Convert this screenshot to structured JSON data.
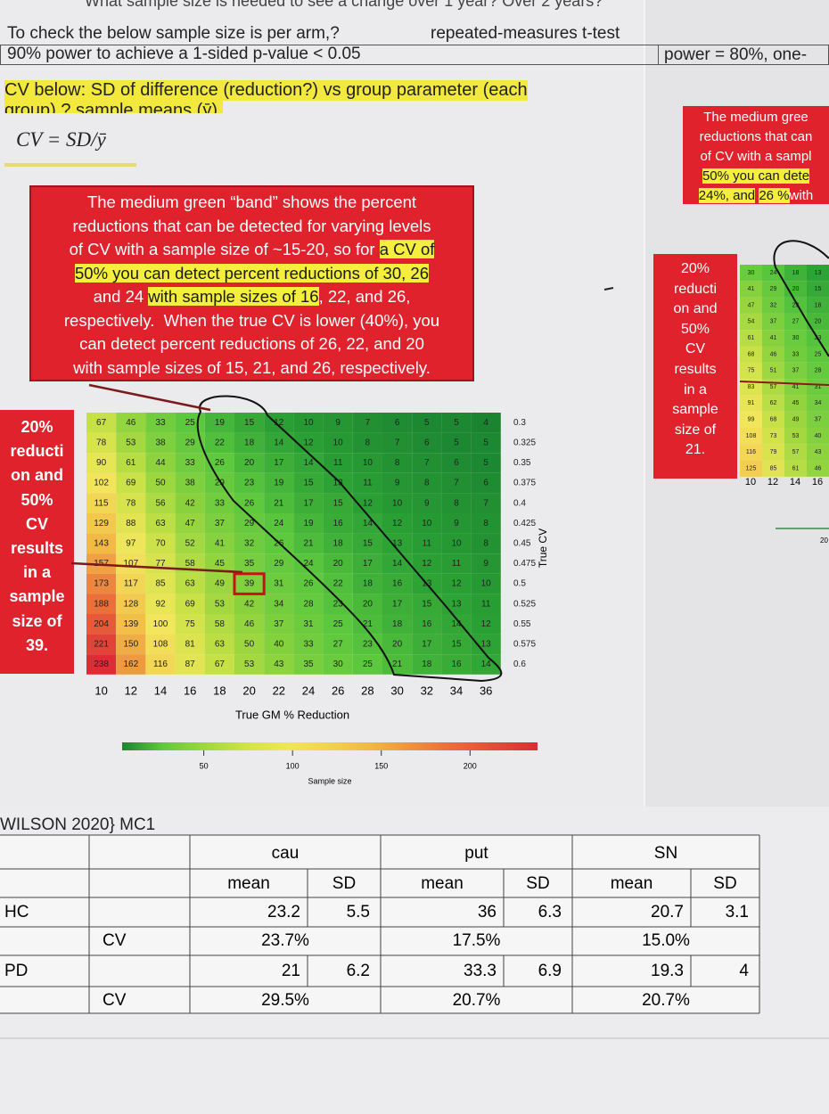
{
  "header": {
    "top": "What sample size is needed to see a change over 1 year? Over 2 years?",
    "check": "To check the below sample size is per arm,?",
    "test": "repeated-measures t-test",
    "power90": "90% power to achieve a 1-sided p-value < 0.05",
    "power80": "power = 80%, one-"
  },
  "cv_note": {
    "line1": "CV below: SD of difference (reduction?) vs group parameter (each",
    "line2": "group) ? sample means (ȳ),",
    "formula": "CV = SD/ȳ"
  },
  "callout_main": {
    "lines": [
      [
        {
          "text": "The medium green “band” shows the percent"
        }
      ],
      [
        {
          "text": "reductions that can be detected for varying levels"
        }
      ],
      [
        {
          "text": "of CV with a sample size of ~15-20, so for "
        },
        {
          "text": "a CV of",
          "hl": true
        }
      ],
      [
        {
          "text": "50% you can detect percent reductions of 30, 26",
          "hl": true
        }
      ],
      [
        {
          "text": "and 24 "
        },
        {
          "text": "with sample sizes of 16",
          "hl": true
        },
        {
          "text": ", 22, and 26,"
        }
      ],
      [
        {
          "text": "respectively.  When the true CV is lower (40%), you"
        }
      ],
      [
        {
          "text": "can detect percent reductions of 26, 22, and 20"
        }
      ],
      [
        {
          "text": "with sample sizes of 15, 21, and 26, respectively."
        }
      ]
    ]
  },
  "callout_left": {
    "lines": [
      "20%",
      "reducti",
      "on and",
      "50%",
      "CV",
      "results",
      "in a",
      "sample",
      "size of",
      "39."
    ]
  },
  "heatmap": {
    "x_title": "True GM % Reduction",
    "y_title": "True CV",
    "columns": [
      10,
      12,
      14,
      16,
      18,
      20,
      22,
      24,
      26,
      28,
      30,
      32,
      34,
      36
    ],
    "rows": [
      {
        "label": "0.3",
        "values": [
          67,
          46,
          33,
          25,
          19,
          15,
          12,
          10,
          9,
          7,
          6,
          5,
          5,
          4
        ]
      },
      {
        "label": "0.325",
        "values": [
          78,
          53,
          38,
          29,
          22,
          18,
          14,
          12,
          10,
          8,
          7,
          6,
          5,
          5
        ]
      },
      {
        "label": "0.35",
        "values": [
          90,
          61,
          44,
          33,
          26,
          20,
          17,
          14,
          11,
          10,
          8,
          7,
          6,
          5
        ]
      },
      {
        "label": "0.375",
        "values": [
          102,
          69,
          50,
          38,
          29,
          23,
          19,
          15,
          13,
          11,
          9,
          8,
          7,
          6
        ]
      },
      {
        "label": "0.4",
        "values": [
          115,
          78,
          56,
          42,
          33,
          26,
          21,
          17,
          15,
          12,
          10,
          9,
          8,
          7
        ]
      },
      {
        "label": "0.425",
        "values": [
          129,
          88,
          63,
          47,
          37,
          29,
          24,
          19,
          16,
          14,
          12,
          10,
          9,
          8
        ]
      },
      {
        "label": "0.45",
        "values": [
          143,
          97,
          70,
          52,
          41,
          32,
          26,
          21,
          18,
          15,
          13,
          11,
          10,
          8
        ]
      },
      {
        "label": "0.475",
        "values": [
          157,
          107,
          77,
          58,
          45,
          35,
          29,
          24,
          20,
          17,
          14,
          12,
          11,
          9
        ]
      },
      {
        "label": "0.5",
        "values": [
          173,
          117,
          85,
          63,
          49,
          39,
          31,
          26,
          22,
          18,
          16,
          13,
          12,
          10
        ]
      },
      {
        "label": "0.525",
        "values": [
          188,
          128,
          92,
          69,
          53,
          42,
          34,
          28,
          23,
          20,
          17,
          15,
          13,
          11
        ]
      },
      {
        "label": "0.55",
        "values": [
          204,
          139,
          100,
          75,
          58,
          46,
          37,
          31,
          25,
          21,
          18,
          16,
          14,
          12
        ]
      },
      {
        "label": "0.575",
        "values": [
          221,
          150,
          108,
          81,
          63,
          50,
          40,
          33,
          27,
          23,
          20,
          17,
          15,
          13
        ]
      },
      {
        "label": "0.6",
        "values": [
          238,
          162,
          116,
          87,
          67,
          53,
          43,
          35,
          30,
          25,
          21,
          18,
          16,
          14
        ]
      }
    ],
    "colorbar": {
      "title": "Sample size",
      "range": [
        4,
        238
      ],
      "ticks": [
        50,
        100,
        150,
        200
      ]
    }
  },
  "right_panel": {
    "box1": [
      [
        {
          "text": "The medium gree"
        }
      ],
      [
        {
          "text": "reductions that can"
        }
      ],
      [
        {
          "text": "of CV with a sampl"
        }
      ],
      [
        {
          "text": "50% you can dete",
          "hl": true
        }
      ],
      [
        {
          "text": "24%, and",
          "hl": true
        },
        {
          "text": " "
        },
        {
          "text": "26 %",
          "hl": true
        },
        {
          "text": "with"
        }
      ]
    ],
    "box2": [
      "20%",
      "reducti",
      "on and",
      "50%",
      "CV",
      "results",
      "in a",
      "sample",
      "size of",
      "21."
    ],
    "columns": [
      10,
      12,
      14,
      16
    ],
    "rows": [
      [
        30,
        24,
        18,
        13
      ],
      [
        41,
        29,
        20,
        15
      ],
      [
        47,
        32,
        23,
        18
      ],
      [
        54,
        37,
        27,
        20
      ],
      [
        61,
        41,
        30,
        23
      ],
      [
        68,
        46,
        33,
        25
      ],
      [
        75,
        51,
        37,
        28
      ],
      [
        83,
        57,
        41,
        31
      ],
      [
        91,
        62,
        45,
        34
      ],
      [
        99,
        68,
        49,
        37
      ],
      [
        108,
        73,
        53,
        40
      ],
      [
        116,
        79,
        57,
        43
      ],
      [
        125,
        85,
        61,
        46
      ]
    ],
    "note": "20"
  },
  "table": {
    "title": "WILSON 2020} MC1",
    "groups": [
      "cau",
      "put",
      "SN"
    ],
    "subheads": [
      "mean",
      "SD",
      "mean",
      "SD",
      "mean",
      "SD"
    ],
    "rows": [
      {
        "label": "HC",
        "values": [
          "23.2",
          "5.5",
          "36",
          "6.3",
          "20.7",
          "3.1"
        ]
      },
      {
        "label": "CV",
        "cv": [
          "23.7%",
          "17.5%",
          "15.0%"
        ]
      },
      {
        "label": "PD",
        "values": [
          "21",
          "6.2",
          "33.3",
          "6.9",
          "19.3",
          "4"
        ]
      },
      {
        "label": "CV",
        "cv": [
          "29.5%",
          "20.7%",
          "20.7%"
        ]
      }
    ]
  }
}
